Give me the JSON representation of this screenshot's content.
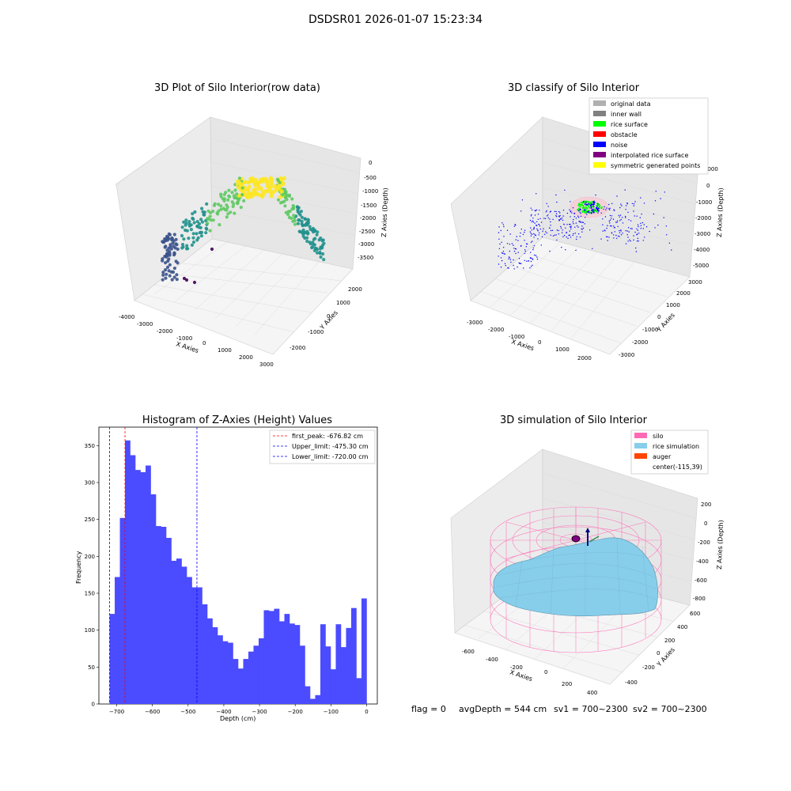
{
  "figure": {
    "suptitle": "DSDSR01 2026-01-07 15:23:34",
    "status": {
      "flag": "flag = 0",
      "avg_depth": "avgDepth = 544 cm",
      "sv1": "sv1 = 700~2300",
      "sv2": "sv2 = 700~2300"
    }
  },
  "chart_data": [
    {
      "type": "scatter",
      "title": "3D Plot of Silo Interior(row data)",
      "xlabel": "X Axies",
      "ylabel": "Y Axies",
      "zlabel": "Z Axies (Depth)",
      "xticks": [
        "-4000",
        "-3000",
        "-2000",
        "-1000",
        "0",
        "1000",
        "2000",
        "3000"
      ],
      "yticks": [
        "-2000",
        "-1000",
        "0",
        "1000",
        "2000"
      ],
      "zticks": [
        "0",
        "-500",
        "-1000",
        "-1500",
        "-2000",
        "-2500",
        "-3000",
        "-3500"
      ],
      "colormap": [
        "#440154",
        "#3b528b",
        "#21918c",
        "#5ec962",
        "#fde725"
      ],
      "points_note_color_by": "depth"
    },
    {
      "type": "scatter",
      "title": "3D classify of Silo Interior",
      "xlabel": "X Axies",
      "ylabel": "Y Axies",
      "zlabel": "Z Axies (Depth)",
      "xticks": [
        "-3000",
        "-2000",
        "-1000",
        "0",
        "1000",
        "2000"
      ],
      "yticks": [
        "-3000",
        "-2000",
        "-1000",
        "0",
        "1000",
        "2000",
        "3000"
      ],
      "zticks": [
        "1000",
        "0",
        "-1000",
        "-2000",
        "-3000",
        "-4000",
        "-5000"
      ],
      "legend": [
        {
          "label": "original data",
          "color": "#b0b0b0"
        },
        {
          "label": "inner wall",
          "color": "#808080"
        },
        {
          "label": "rice surface",
          "color": "#00ff00"
        },
        {
          "label": "obstacle",
          "color": "#ff0000"
        },
        {
          "label": "noise",
          "color": "#0000ff"
        },
        {
          "label": "interpolated rice surface",
          "color": "#800080"
        },
        {
          "label": "symmetric generated points",
          "color": "#ffff00"
        }
      ]
    },
    {
      "type": "bar",
      "title": "Histogram of Z-Axies (Height) Values",
      "xlabel": "Depth (cm)",
      "ylabel": "Frequency",
      "xlim": [
        -750,
        30
      ],
      "ylim": [
        0,
        375
      ],
      "xticks": [
        -700,
        -600,
        -500,
        -400,
        -300,
        -200,
        -100,
        0
      ],
      "yticks": [
        0,
        50,
        100,
        150,
        200,
        250,
        300,
        350
      ],
      "bin_start": -720,
      "bin_width": 14.4,
      "values": [
        122,
        172,
        252,
        357,
        337,
        317,
        314,
        323,
        284,
        241,
        240,
        225,
        194,
        197,
        186,
        172,
        158,
        158,
        135,
        116,
        104,
        93,
        85,
        83,
        61,
        48,
        61,
        71,
        79,
        89,
        127,
        126,
        129,
        112,
        122,
        109,
        107,
        79,
        24,
        7,
        12,
        108,
        78,
        47,
        108,
        77,
        103,
        130,
        35,
        143
      ],
      "bar_color": "#4b4bff",
      "lines": [
        {
          "label": "first_peak: -676.82 cm",
          "x": -676.82,
          "color": "#ff0000"
        },
        {
          "label": "Upper_limit: -475.30 cm",
          "x": -475.3,
          "color": "#0000ff"
        },
        {
          "label": "Lower_limit: -720.00 cm",
          "x": -720.0,
          "color": "#0000ff"
        }
      ]
    },
    {
      "type": "surface",
      "title": "3D simulation of Silo Interior",
      "xlabel": "X Axies",
      "ylabel": "Y Axies",
      "zlabel": "Z Axies (Depth)",
      "xticks": [
        "-600",
        "-400",
        "-200",
        "0",
        "200",
        "400"
      ],
      "yticks": [
        "-400",
        "-200",
        "0",
        "200",
        "400",
        "600"
      ],
      "zticks": [
        "200",
        "0",
        "-200",
        "-400",
        "-600",
        "-800"
      ],
      "legend": [
        {
          "label": "silo",
          "color": "#ff69b4"
        },
        {
          "label": "rice simulation",
          "color": "#87ceeb"
        },
        {
          "label": "auger",
          "color": "#ff4500"
        },
        {
          "label": "center(-115,39)",
          "color": ""
        }
      ]
    }
  ]
}
